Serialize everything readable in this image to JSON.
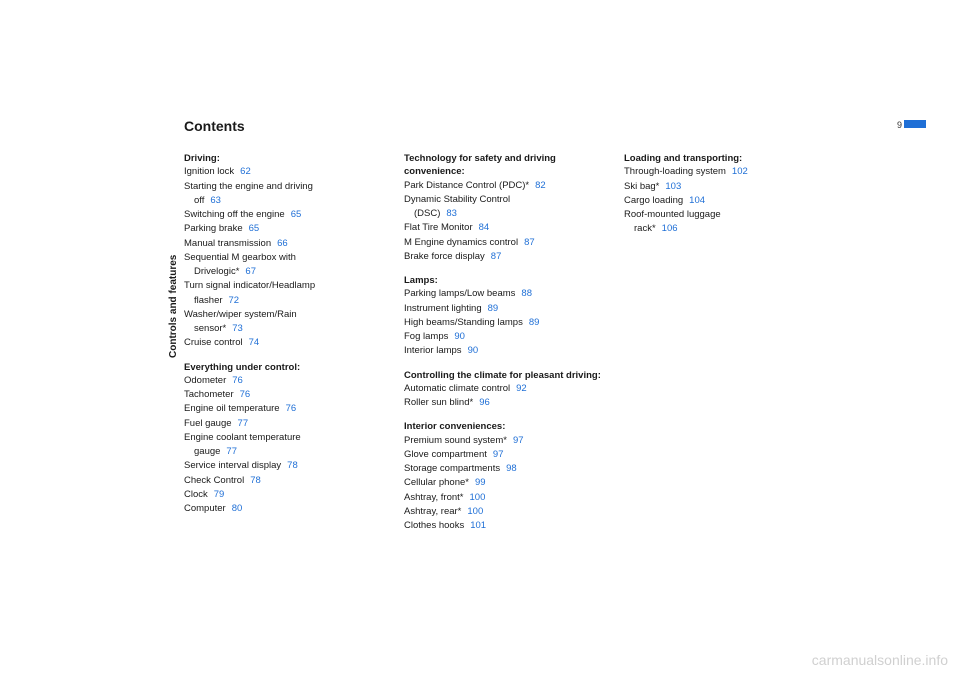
{
  "title": "Contents",
  "sidebar_label": "Controls and features",
  "page_number": "9",
  "watermark": "carmanualsonline.info",
  "colors": {
    "link": "#1f6fd6",
    "bar": "#1f6fd6",
    "text": "#1a1a1a",
    "watermark": "#d0d0d0"
  },
  "columns": [
    {
      "sections": [
        {
          "heading": "Driving:",
          "items": [
            {
              "text": "Ignition lock",
              "page": "62"
            },
            {
              "text": "Starting the engine and driving",
              "cont": "off",
              "page": "63"
            },
            {
              "text": "Switching off the engine",
              "page": "65"
            },
            {
              "text": "Parking brake",
              "page": "65"
            },
            {
              "text": "Manual transmission",
              "page": "66"
            },
            {
              "text": "Sequential M gearbox with",
              "cont": "Drivelogic*",
              "page": "67"
            },
            {
              "text": "Turn signal indicator/Headlamp",
              "cont": "flasher",
              "page": "72"
            },
            {
              "text": "Washer/wiper system/Rain",
              "cont": "sensor*",
              "page": "73"
            },
            {
              "text": "Cruise control",
              "page": "74"
            }
          ]
        },
        {
          "heading": "Everything under control:",
          "items": [
            {
              "text": "Odometer",
              "page": "76"
            },
            {
              "text": "Tachometer",
              "page": "76"
            },
            {
              "text": "Engine oil temperature",
              "page": "76"
            },
            {
              "text": "Fuel gauge",
              "page": "77"
            },
            {
              "text": "Engine coolant temperature",
              "cont": "gauge",
              "page": "77"
            },
            {
              "text": "Service interval display",
              "page": "78"
            },
            {
              "text": "Check Control",
              "page": "78"
            },
            {
              "text": "Clock",
              "page": "79"
            },
            {
              "text": "Computer",
              "page": "80"
            }
          ]
        }
      ]
    },
    {
      "sections": [
        {
          "heading": "Technology for safety and driving convenience:",
          "items": [
            {
              "text": "Park Distance Control (PDC)*",
              "page": "82"
            },
            {
              "text": "Dynamic Stability Control",
              "cont": "(DSC)",
              "page": "83"
            },
            {
              "text": "Flat Tire Monitor",
              "page": "84"
            },
            {
              "text": "M Engine dynamics control",
              "page": "87"
            },
            {
              "text": "Brake force display",
              "page": "87"
            }
          ]
        },
        {
          "heading": "Lamps:",
          "items": [
            {
              "text": "Parking lamps/Low beams",
              "page": "88"
            },
            {
              "text": "Instrument lighting",
              "page": "89"
            },
            {
              "text": "High beams/Standing lamps",
              "page": "89"
            },
            {
              "text": "Fog lamps",
              "page": "90"
            },
            {
              "text": "Interior lamps",
              "page": "90"
            }
          ]
        },
        {
          "heading": "Controlling the climate for pleasant driving:",
          "items": [
            {
              "text": "Automatic climate control",
              "page": "92"
            },
            {
              "text": "Roller sun blind*",
              "page": "96"
            }
          ]
        },
        {
          "heading": "Interior conveniences:",
          "items": [
            {
              "text": "Premium sound system*",
              "page": "97"
            },
            {
              "text": "Glove compartment",
              "page": "97"
            },
            {
              "text": "Storage compartments",
              "page": "98"
            },
            {
              "text": "Cellular phone*",
              "page": "99"
            },
            {
              "text": "Ashtray, front*",
              "page": "100"
            },
            {
              "text": "Ashtray, rear*",
              "page": "100"
            },
            {
              "text": "Clothes hooks",
              "page": "101"
            }
          ]
        }
      ]
    },
    {
      "sections": [
        {
          "heading": "Loading and transporting:",
          "items": [
            {
              "text": "Through-loading system",
              "page": "102"
            },
            {
              "text": "Ski bag*",
              "page": "103"
            },
            {
              "text": "Cargo loading",
              "page": "104"
            },
            {
              "text": "Roof-mounted luggage",
              "cont": "rack*",
              "page": "106"
            }
          ]
        }
      ]
    }
  ]
}
